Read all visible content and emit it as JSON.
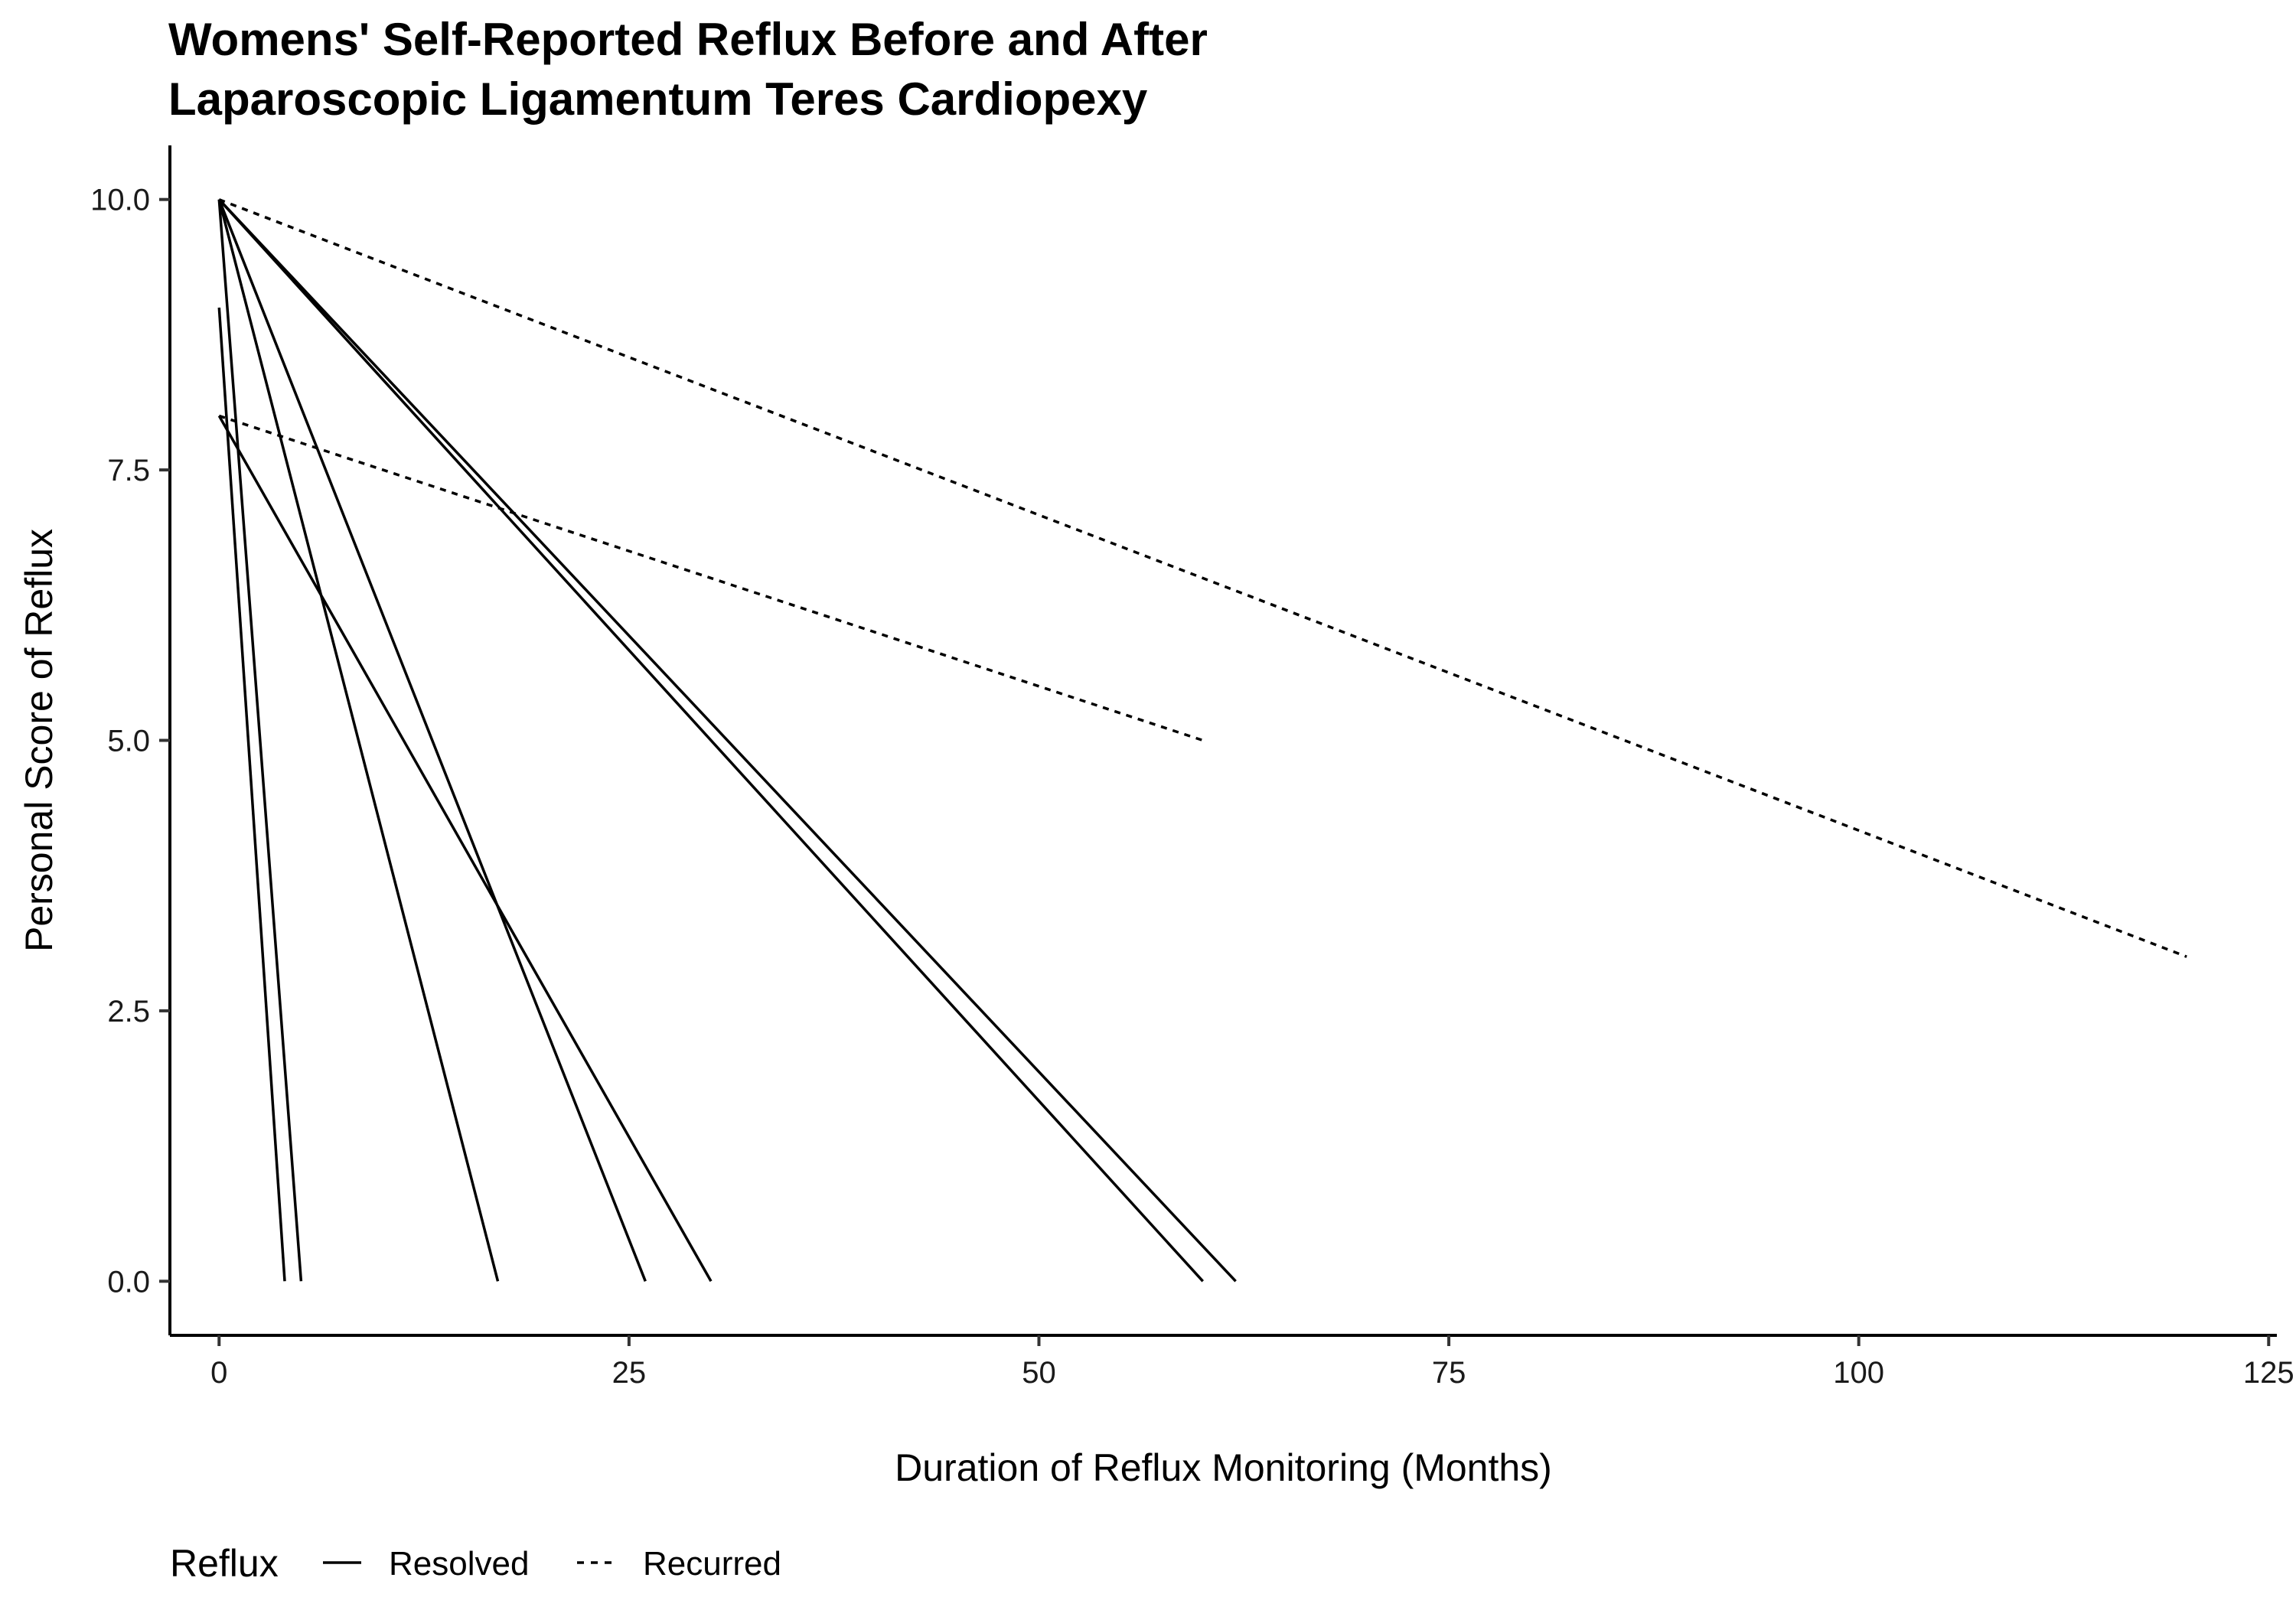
{
  "chart_data": {
    "type": "line",
    "title": "Womens' Self-Reported Reflux Before and After Laparoscopic Ligamentum Teres Cardiopexy",
    "title_lines": [
      "Womens' Self-Reported Reflux Before and After",
      "Laparoscopic Ligamentum Teres Cardiopexy"
    ],
    "xlabel": "Duration of Reflux Monitoring (Months)",
    "ylabel": "Personal Score of Reflux",
    "xlim": [
      -3,
      125.5
    ],
    "ylim": [
      -0.5,
      10.5
    ],
    "x_ticks": [
      0,
      25,
      50,
      75,
      100,
      125
    ],
    "x_tick_labels": [
      "0",
      "25",
      "50",
      "75",
      "100",
      "125"
    ],
    "y_ticks": [
      0,
      2.5,
      5,
      7.5,
      10
    ],
    "y_tick_labels": [
      "0.0",
      "2.5",
      "5.0",
      "7.5",
      "10.0"
    ],
    "grid": false,
    "legend": {
      "title": "Reflux",
      "position": "bottom-left",
      "entries": [
        {
          "label": "Resolved",
          "linetype": "solid"
        },
        {
          "label": "Recurred",
          "linetype": "dashed"
        }
      ]
    },
    "series": [
      {
        "group": "Resolved",
        "x": [
          0,
          4
        ],
        "y": [
          9,
          0
        ]
      },
      {
        "group": "Resolved",
        "x": [
          0,
          5
        ],
        "y": [
          10,
          0
        ]
      },
      {
        "group": "Resolved",
        "x": [
          0,
          17
        ],
        "y": [
          10,
          0
        ]
      },
      {
        "group": "Resolved",
        "x": [
          0,
          26
        ],
        "y": [
          10,
          0
        ]
      },
      {
        "group": "Resolved",
        "x": [
          0,
          30
        ],
        "y": [
          8,
          0
        ]
      },
      {
        "group": "Resolved",
        "x": [
          0,
          60
        ],
        "y": [
          10,
          0
        ]
      },
      {
        "group": "Resolved",
        "x": [
          0,
          62
        ],
        "y": [
          10,
          0
        ]
      },
      {
        "group": "Recurred",
        "x": [
          0,
          60
        ],
        "y": [
          8,
          5
        ]
      },
      {
        "group": "Recurred",
        "x": [
          0,
          120
        ],
        "y": [
          10,
          3
        ]
      }
    ],
    "colors": {
      "line": "#000000",
      "axis": "#000000",
      "background": "#ffffff"
    }
  }
}
